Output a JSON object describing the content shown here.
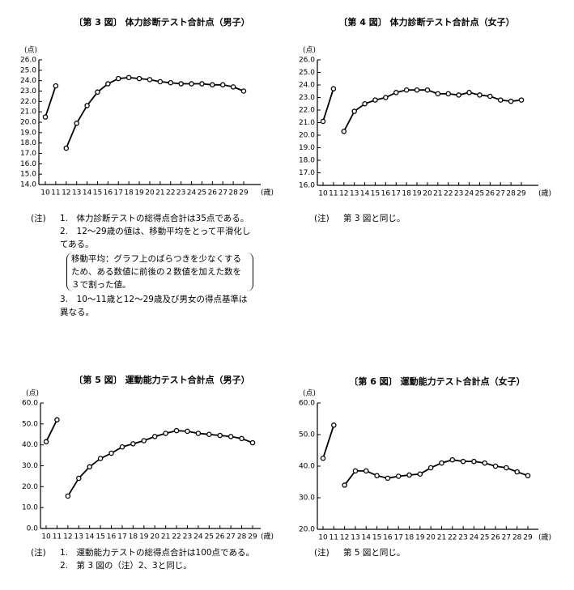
{
  "chart_data": [
    {
      "type": "line",
      "title": "〔第 3 図〕 体力診断テスト合計点（男子）",
      "y_label": "(点)",
      "x_label": "(歳)",
      "categories": [
        "10",
        "11",
        "12",
        "13",
        "14",
        "15",
        "16",
        "17",
        "18",
        "19",
        "20",
        "21",
        "22",
        "23",
        "24",
        "25",
        "26",
        "27",
        "28",
        "29"
      ],
      "series": [
        {
          "color": "#000000",
          "values": [
            20.5,
            23.5,
            null,
            null,
            null,
            null,
            null,
            null,
            null,
            null,
            null,
            null,
            null,
            null,
            null,
            null,
            null,
            null,
            null,
            null
          ]
        },
        {
          "color": "#000000",
          "values": [
            null,
            null,
            17.5,
            19.9,
            21.6,
            22.9,
            23.7,
            24.2,
            24.3,
            24.2,
            24.1,
            23.9,
            23.8,
            23.7,
            23.7,
            23.7,
            23.6,
            23.6,
            23.4,
            23.0
          ]
        }
      ],
      "ylim": [
        14,
        26
      ],
      "yticks": [
        {
          "value": 14,
          "label": "14.0"
        },
        {
          "value": 15,
          "label": "15.0"
        },
        {
          "value": 16,
          "label": "16.0"
        },
        {
          "value": 17,
          "label": "17.0"
        },
        {
          "value": 18,
          "label": "18.0"
        },
        {
          "value": 19,
          "label": "19.0"
        },
        {
          "value": 20,
          "label": "20.0"
        },
        {
          "value": 21,
          "label": "21.0"
        },
        {
          "value": 22,
          "label": "22.0"
        },
        {
          "value": 23,
          "label": "23.0"
        },
        {
          "value": 24,
          "label": "24.0"
        },
        {
          "value": 25,
          "label": "25.0"
        },
        {
          "value": 26,
          "label": "26.0"
        }
      ],
      "notes": {
        "label": "(注)",
        "items": [
          "1.　体力診断テストの総得点合計は35点である。",
          "2.　12～29歳の値は、移動平均をとって平滑化してある。",
          "3.　10～11歳と12～29歳及び男女の得点基準は異なる。"
        ],
        "box": "移動平均：グラフ上のばらつきを少なくするため、ある数値に前後の２数値を加えた数を３で割った値。"
      }
    },
    {
      "type": "line",
      "title": "〔第 4 図〕 体力診断テスト合計点（女子）",
      "y_label": "(点)",
      "x_label": "(歳)",
      "categories": [
        "10",
        "11",
        "12",
        "13",
        "14",
        "15",
        "16",
        "17",
        "18",
        "19",
        "20",
        "21",
        "22",
        "23",
        "24",
        "25",
        "26",
        "27",
        "28",
        "29"
      ],
      "series": [
        {
          "color": "#000000",
          "values": [
            21.1,
            23.7,
            null,
            null,
            null,
            null,
            null,
            null,
            null,
            null,
            null,
            null,
            null,
            null,
            null,
            null,
            null,
            null,
            null,
            null
          ]
        },
        {
          "color": "#000000",
          "values": [
            null,
            null,
            20.3,
            21.9,
            22.5,
            22.8,
            23.0,
            23.4,
            23.6,
            23.6,
            23.6,
            23.3,
            23.3,
            23.2,
            23.4,
            23.2,
            23.1,
            22.8,
            22.7,
            22.8
          ]
        }
      ],
      "ylim": [
        16,
        26
      ],
      "yticks": [
        {
          "value": 16,
          "label": "16.0"
        },
        {
          "value": 17,
          "label": "17.0"
        },
        {
          "value": 18,
          "label": "18.0"
        },
        {
          "value": 19,
          "label": "19.0"
        },
        {
          "value": 20,
          "label": "20.0"
        },
        {
          "value": 21,
          "label": "21.0"
        },
        {
          "value": 22,
          "label": "22.0"
        },
        {
          "value": 23,
          "label": "23.0"
        },
        {
          "value": 24,
          "label": "24.0"
        },
        {
          "value": 25,
          "label": "25.0"
        },
        {
          "value": 26,
          "label": "26.0"
        }
      ],
      "notes": {
        "label": "(注)",
        "items": [
          "第 3 図と同じ。"
        ]
      }
    },
    {
      "type": "line",
      "title": "〔第 5 図〕 運動能力テスト合計点（男子）",
      "y_label": "(点)",
      "x_label": "(歳)",
      "categories": [
        "10",
        "11",
        "12",
        "13",
        "14",
        "15",
        "16",
        "17",
        "18",
        "19",
        "20",
        "21",
        "22",
        "23",
        "24",
        "25",
        "26",
        "27",
        "28",
        "29"
      ],
      "series": [
        {
          "color": "#000000",
          "values": [
            41.5,
            52,
            null,
            null,
            null,
            null,
            null,
            null,
            null,
            null,
            null,
            null,
            null,
            null,
            null,
            null,
            null,
            null,
            null,
            null
          ]
        },
        {
          "color": "#000000",
          "values": [
            null,
            null,
            15.5,
            24,
            29.5,
            33.5,
            36,
            39,
            40.5,
            42,
            44,
            45.5,
            46.8,
            46.5,
            45.5,
            45,
            44.5,
            44,
            43,
            41
          ]
        }
      ],
      "ylim": [
        0,
        60
      ],
      "yticks": [
        {
          "value": 0,
          "label": "0.0"
        },
        {
          "value": 10,
          "label": "10.0"
        },
        {
          "value": 20,
          "label": "20.0"
        },
        {
          "value": 30,
          "label": "30.0"
        },
        {
          "value": 40,
          "label": "40.0"
        },
        {
          "value": 50,
          "label": "50.0"
        },
        {
          "value": 60,
          "label": "60.0"
        }
      ],
      "notes": {
        "label": "(注)",
        "items": [
          "1.　運動能力テストの総得点合計は100点である。",
          "2.　第 3 図の（注）2、3と同じ。"
        ]
      }
    },
    {
      "type": "line",
      "title": "〔第 6 図〕 運動能力テスト合計点（女子）",
      "y_label": "(点)",
      "x_label": "(歳)",
      "categories": [
        "10",
        "11",
        "12",
        "13",
        "14",
        "15",
        "16",
        "17",
        "18",
        "19",
        "20",
        "21",
        "22",
        "23",
        "24",
        "25",
        "26",
        "27",
        "28",
        "29"
      ],
      "series": [
        {
          "color": "#000000",
          "values": [
            42.5,
            53,
            null,
            null,
            null,
            null,
            null,
            null,
            null,
            null,
            null,
            null,
            null,
            null,
            null,
            null,
            null,
            null,
            null,
            null
          ]
        },
        {
          "color": "#000000",
          "values": [
            null,
            null,
            34,
            38.5,
            38.5,
            37,
            36.2,
            36.8,
            37.2,
            37.5,
            39.5,
            41,
            42,
            41.5,
            41.5,
            41,
            40,
            39.5,
            38.2,
            37
          ]
        }
      ],
      "ylim": [
        20,
        60
      ],
      "yticks": [
        {
          "value": 20,
          "label": "20.0"
        },
        {
          "value": 30,
          "label": "30.0"
        },
        {
          "value": 40,
          "label": "40.0"
        },
        {
          "value": 50,
          "label": "50.0"
        },
        {
          "value": 60,
          "label": "60.0"
        }
      ],
      "notes": {
        "label": "(注)",
        "items": [
          "第 5 図と同じ。"
        ]
      }
    }
  ]
}
